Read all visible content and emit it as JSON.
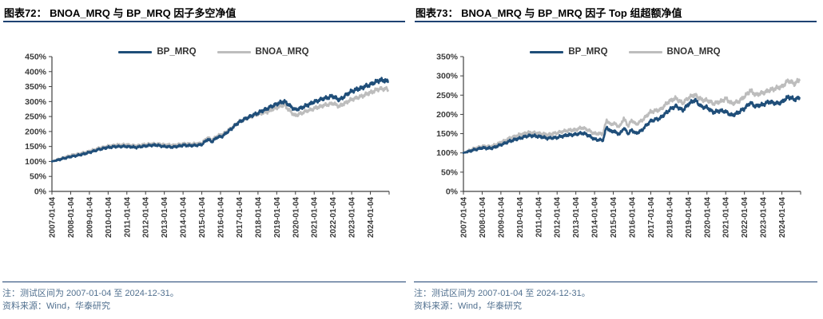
{
  "colors": {
    "navy": "#1f4e79",
    "gray": "#bdbdbd",
    "rule": "#1e4272",
    "note_text": "#51708f",
    "axis_line": "#404040",
    "axis_text": "#3a3a3a",
    "title_text": "#000000",
    "background": "#ffffff"
  },
  "panels": [
    {
      "title": "图表72：  BNOA_MRQ 与 BP_MRQ 因子多空净值",
      "note1": "注：测试区间为 2007-01-04 至 2024-12-31。",
      "note2": "资料来源：Wind，华泰研究"
    },
    {
      "title": "图表73：  BNOA_MRQ 与 BP_MRQ 因子 Top 组超额净值",
      "note1": "注：测试区间为 2007-01-04 至 2024-12-31。",
      "note2": "资料来源：Wind，华泰研究"
    }
  ],
  "chart_data": [
    {
      "type": "line",
      "title": "图表72：BNOA_MRQ 与 BP_MRQ 因子多空净值",
      "xlabel": "",
      "ylabel": "",
      "grid": false,
      "legend_position": "top",
      "x_range": [
        2007,
        2025
      ],
      "ylim": [
        0,
        450
      ],
      "ytick_step": 50,
      "ytick_labels": [
        "0%",
        "50%",
        "100%",
        "150%",
        "200%",
        "250%",
        "300%",
        "350%",
        "400%",
        "450%"
      ],
      "xtick_labels": [
        "2007-01-04",
        "2008-01-04",
        "2009-01-04",
        "2010-01-04",
        "2011-01-04",
        "2012-01-04",
        "2013-01-04",
        "2014-01-04",
        "2015-01-04",
        "2016-01-04",
        "2017-01-04",
        "2018-01-04",
        "2019-01-04",
        "2020-01-04",
        "2021-01-04",
        "2022-01-04",
        "2023-01-04",
        "2024-01-04"
      ],
      "unit": "percent",
      "series": [
        {
          "name": "BP_MRQ",
          "color": "#1f4e79",
          "x": [
            2007.0,
            2007.5,
            2008.0,
            2008.5,
            2009.0,
            2009.5,
            2010.0,
            2010.5,
            2011.0,
            2011.5,
            2012.0,
            2012.5,
            2013.0,
            2013.5,
            2014.0,
            2014.5,
            2015.0,
            2015.3,
            2015.55,
            2015.8,
            2016.1,
            2016.5,
            2017.0,
            2017.5,
            2018.0,
            2018.5,
            2019.0,
            2019.4,
            2019.7,
            2020.0,
            2020.5,
            2021.0,
            2021.5,
            2022.0,
            2022.35,
            2022.7,
            2023.0,
            2023.5,
            2024.0,
            2024.5,
            2024.95
          ],
          "values": [
            100,
            108,
            116,
            122,
            130,
            140,
            147,
            150,
            150,
            147,
            152,
            155,
            150,
            148,
            154,
            153,
            156,
            174,
            166,
            180,
            184,
            205,
            232,
            248,
            262,
            277,
            292,
            301,
            286,
            272,
            284,
            299,
            310,
            318,
            305,
            322,
            335,
            345,
            357,
            372,
            368
          ]
        },
        {
          "name": "BNOA_MRQ",
          "color": "#bdbdbd",
          "x": [
            2007.0,
            2007.5,
            2008.0,
            2008.5,
            2009.0,
            2009.5,
            2010.0,
            2010.5,
            2011.0,
            2011.5,
            2012.0,
            2012.5,
            2013.0,
            2013.5,
            2014.0,
            2014.5,
            2015.0,
            2015.3,
            2015.55,
            2015.8,
            2016.1,
            2016.5,
            2017.0,
            2017.5,
            2018.0,
            2018.5,
            2019.0,
            2019.4,
            2019.7,
            2020.0,
            2020.5,
            2021.0,
            2021.5,
            2022.0,
            2022.35,
            2022.7,
            2023.0,
            2023.5,
            2024.0,
            2024.5,
            2024.95
          ],
          "values": [
            100,
            110,
            120,
            126,
            134,
            144,
            151,
            155,
            156,
            152,
            157,
            159,
            156,
            154,
            159,
            158,
            161,
            180,
            171,
            185,
            190,
            208,
            233,
            247,
            258,
            266,
            280,
            289,
            268,
            253,
            266,
            277,
            287,
            294,
            284,
            297,
            307,
            317,
            330,
            343,
            341
          ]
        }
      ]
    },
    {
      "type": "line",
      "title": "图表73：BNOA_MRQ 与 BP_MRQ 因子 Top 组超额净值",
      "xlabel": "",
      "ylabel": "",
      "grid": false,
      "legend_position": "top",
      "x_range": [
        2007,
        2025
      ],
      "ylim": [
        0,
        350
      ],
      "ytick_step": 50,
      "ytick_labels": [
        "0%",
        "50%",
        "100%",
        "150%",
        "200%",
        "250%",
        "300%",
        "350%"
      ],
      "xtick_labels": [
        "2007-01-04",
        "2008-01-04",
        "2009-01-04",
        "2010-01-04",
        "2011-01-04",
        "2012-01-04",
        "2013-01-04",
        "2014-01-04",
        "2015-01-04",
        "2016-01-04",
        "2017-01-04",
        "2018-01-04",
        "2019-01-04",
        "2020-01-04",
        "2021-01-04",
        "2022-01-04",
        "2023-01-04",
        "2024-01-04"
      ],
      "unit": "percent",
      "series": [
        {
          "name": "BP_MRQ",
          "color": "#1f4e79",
          "x": [
            2007.0,
            2007.5,
            2008.0,
            2008.5,
            2009.0,
            2009.5,
            2010.0,
            2010.5,
            2011.0,
            2011.5,
            2012.0,
            2012.5,
            2013.0,
            2013.35,
            2013.7,
            2014.0,
            2014.45,
            2014.65,
            2014.85,
            2015.0,
            2015.35,
            2015.55,
            2015.8,
            2016.0,
            2016.2,
            2016.5,
            2017.0,
            2017.5,
            2018.0,
            2018.35,
            2018.7,
            2019.0,
            2019.35,
            2019.7,
            2020.0,
            2020.35,
            2020.7,
            2021.0,
            2021.35,
            2021.7,
            2022.0,
            2022.3,
            2022.6,
            2023.0,
            2023.35,
            2023.7,
            2024.0,
            2024.35,
            2024.7,
            2024.95
          ],
          "values": [
            100,
            107,
            113,
            112,
            121,
            131,
            138,
            145,
            143,
            138,
            140,
            146,
            148,
            152,
            145,
            135,
            133,
            168,
            155,
            157,
            148,
            165,
            150,
            160,
            150,
            158,
            183,
            190,
            212,
            222,
            210,
            226,
            238,
            220,
            218,
            205,
            210,
            207,
            197,
            206,
            215,
            230,
            221,
            226,
            233,
            228,
            232,
            246,
            238,
            245
          ]
        },
        {
          "name": "BNOA_MRQ",
          "color": "#bdbdbd",
          "x": [
            2007.0,
            2007.5,
            2008.0,
            2008.5,
            2009.0,
            2009.5,
            2010.0,
            2010.5,
            2011.0,
            2011.5,
            2012.0,
            2012.5,
            2013.0,
            2013.35,
            2013.7,
            2014.0,
            2014.45,
            2014.65,
            2014.85,
            2015.0,
            2015.35,
            2015.55,
            2015.8,
            2016.0,
            2016.2,
            2016.5,
            2017.0,
            2017.5,
            2018.0,
            2018.35,
            2018.7,
            2019.0,
            2019.35,
            2019.7,
            2020.0,
            2020.35,
            2020.7,
            2021.0,
            2021.35,
            2021.7,
            2022.0,
            2022.3,
            2022.6,
            2023.0,
            2023.35,
            2023.7,
            2024.0,
            2024.35,
            2024.7,
            2024.95
          ],
          "values": [
            100,
            110,
            117,
            117,
            127,
            139,
            147,
            153,
            151,
            147,
            152,
            158,
            160,
            166,
            158,
            150,
            150,
            186,
            173,
            177,
            168,
            190,
            170,
            186,
            174,
            183,
            207,
            212,
            235,
            242,
            229,
            243,
            251,
            238,
            237,
            228,
            233,
            241,
            228,
            234,
            246,
            262,
            251,
            256,
            263,
            268,
            272,
            288,
            279,
            292
          ]
        }
      ]
    }
  ]
}
